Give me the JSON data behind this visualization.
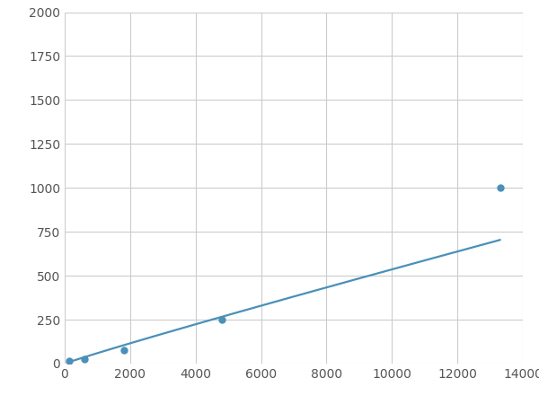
{
  "x": [
    150,
    600,
    1800,
    4800,
    13300
  ],
  "y": [
    15,
    25,
    75,
    250,
    1000
  ],
  "line_color": "#4a90b8",
  "marker_color": "#4a90b8",
  "marker_size": 5,
  "line_width": 1.6,
  "xlim": [
    0,
    14000
  ],
  "ylim": [
    0,
    2000
  ],
  "xticks": [
    0,
    2000,
    4000,
    6000,
    8000,
    10000,
    12000,
    14000
  ],
  "yticks": [
    0,
    250,
    500,
    750,
    1000,
    1250,
    1500,
    1750,
    2000
  ],
  "grid_color": "#cccccc",
  "background_color": "#ffffff",
  "fig_background_color": "#ffffff"
}
